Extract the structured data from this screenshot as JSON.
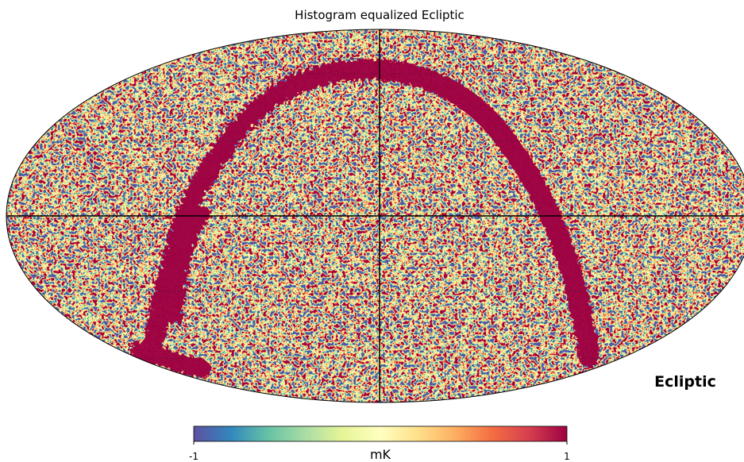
{
  "chart_data": {
    "type": "mollview",
    "title": "Histogram equalized Ecliptic",
    "coord_label": "Ecliptic",
    "colorbar": {
      "label": "mK",
      "range": [
        -1,
        1
      ],
      "ticks": [
        -1,
        1
      ],
      "colors": [
        "#5e4fa2",
        "#3288bd",
        "#66c2a5",
        "#abdda4",
        "#e6f598",
        "#ffffbf",
        "#fee08b",
        "#fdae61",
        "#f46d43",
        "#d53e4f",
        "#9e0142"
      ]
    }
  }
}
